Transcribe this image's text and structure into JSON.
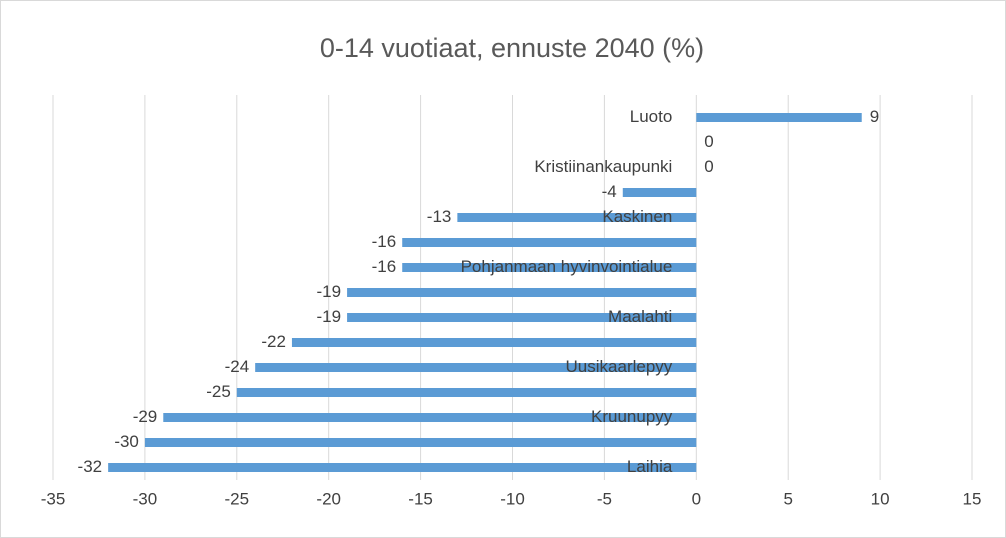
{
  "chart_data": {
    "type": "barh",
    "title": "0-14 vuotiaat, ennuste 2040 (%)",
    "categories": [
      "Luoto",
      null,
      "Kristiinankaupunki",
      null,
      "Kaskinen",
      null,
      "Pohjanmaan hyvinvointialue",
      null,
      "Maalahti",
      null,
      "Uusikaarlepyy",
      null,
      "Kruunupyy",
      null,
      "Laihia"
    ],
    "values": [
      9,
      0,
      0,
      -4,
      -13,
      -16,
      -16,
      -19,
      -19,
      -22,
      -24,
      -25,
      -29,
      -30,
      -32
    ],
    "color": "#5b9bd5",
    "xlim": [
      -35,
      15
    ],
    "xticks": [
      -35,
      -30,
      -25,
      -20,
      -15,
      -10,
      -5,
      0,
      5,
      10,
      15
    ],
    "grid": true
  }
}
